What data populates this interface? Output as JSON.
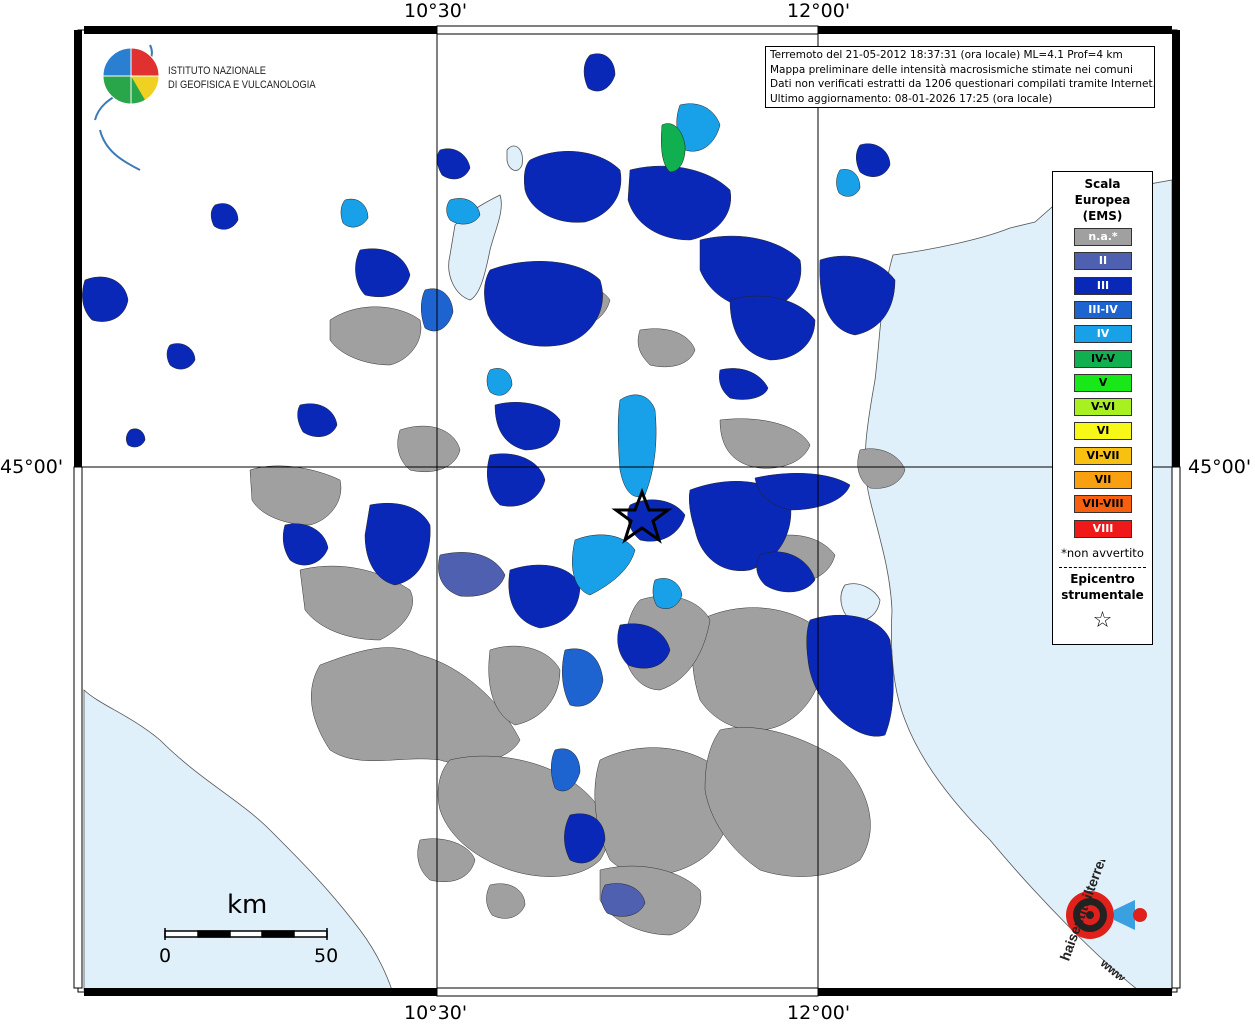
{
  "institute": {
    "line1": "ISTITUTO NAZIONALE",
    "line2": "DI GEOFISICA E VULCANOLOGIA"
  },
  "coordinates": {
    "lon_left": "10°30'",
    "lon_right": "12°00'",
    "lat": "45°00'"
  },
  "info": {
    "line1": "Terremoto del 21-05-2012 18:37:31 (ora locale) ML=4.1 Prof=4 km",
    "line2": "Mappa preliminare delle intensità macrosismiche stimate nei comuni",
    "line3": "Dati non verificati estratti da 1206 questionari compilati tramite Internet.",
    "line4": "Ultimo aggiornamento: 08-01-2026 17:25 (ora locale)"
  },
  "legend": {
    "title": "Scala Europea (EMS)",
    "title_line1": "Scala",
    "title_line2": "Europea",
    "title_line3": "(EMS)",
    "items": [
      {
        "label": "n.a.*",
        "color": "#a0a0a0",
        "text_color": "#ffffff"
      },
      {
        "label": "II",
        "color": "#5060b0",
        "text_color": "#ffffff"
      },
      {
        "label": "III",
        "color": "#0a28b8",
        "text_color": "#ffffff"
      },
      {
        "label": "III-IV",
        "color": "#1e64d0",
        "text_color": "#ffffff"
      },
      {
        "label": "IV",
        "color": "#18a0e8",
        "text_color": "#ffffff"
      },
      {
        "label": "IV-V",
        "color": "#10b050",
        "text_color": "#000000"
      },
      {
        "label": "V",
        "color": "#18e818",
        "text_color": "#000000"
      },
      {
        "label": "V-VI",
        "color": "#a8f020",
        "text_color": "#000000"
      },
      {
        "label": "VI",
        "color": "#f8f818",
        "text_color": "#000000"
      },
      {
        "label": "VI-VII",
        "color": "#f8c010",
        "text_color": "#000000"
      },
      {
        "label": "VII",
        "color": "#f8a010",
        "text_color": "#000000"
      },
      {
        "label": "VII-VIII",
        "color": "#f86010",
        "text_color": "#000000"
      },
      {
        "label": "VIII",
        "color": "#f01818",
        "text_color": "#ffffff"
      }
    ],
    "note": "*non avvertito",
    "epicenter_line1": "Epicentro",
    "epicenter_line2": "strumentale",
    "star": "☆"
  },
  "scale_bar": {
    "unit": "km",
    "min": "0",
    "max": "50"
  },
  "site_logo": {
    "text": "haisentitoilterremoto.it",
    "www": "www."
  }
}
